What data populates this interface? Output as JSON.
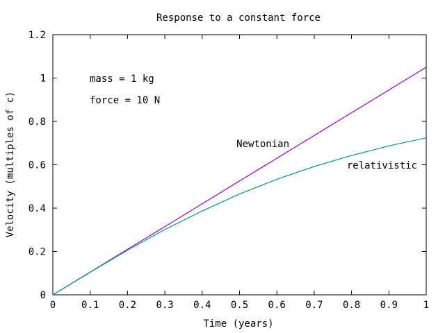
{
  "chart_data": {
    "type": "line",
    "title": "Response to a constant force",
    "xlabel": "Time (years)",
    "ylabel": "Velocity (multiples of c)",
    "xlim": [
      0,
      1
    ],
    "ylim": [
      0,
      1.2
    ],
    "xticks": [
      "0",
      "0.1",
      "0.2",
      "0.3",
      "0.4",
      "0.5",
      "0.6",
      "0.7",
      "0.8",
      "0.9",
      "1"
    ],
    "yticks": [
      "0",
      "0.2",
      "0.4",
      "0.6",
      "0.8",
      "1",
      "1.2"
    ],
    "grid": false,
    "legend": "none",
    "annotations": [
      "mass = 1 kg",
      "force = 10 N"
    ],
    "series": [
      {
        "name": "Newtonian",
        "color": "#9400d3",
        "x": [
          0,
          0.1,
          0.2,
          0.3,
          0.4,
          0.5,
          0.6,
          0.7,
          0.8,
          0.9,
          1.0
        ],
        "y": [
          0,
          0.105,
          0.21,
          0.315,
          0.42,
          0.525,
          0.63,
          0.735,
          0.84,
          0.945,
          1.05
        ]
      },
      {
        "name": "relativistic",
        "color": "#009e73",
        "x": [
          0,
          0.1,
          0.2,
          0.3,
          0.4,
          0.5,
          0.6,
          0.7,
          0.8,
          0.9,
          1.0
        ],
        "y": [
          0,
          0.104,
          0.206,
          0.301,
          0.387,
          0.465,
          0.533,
          0.592,
          0.643,
          0.687,
          0.724
        ]
      }
    ]
  }
}
